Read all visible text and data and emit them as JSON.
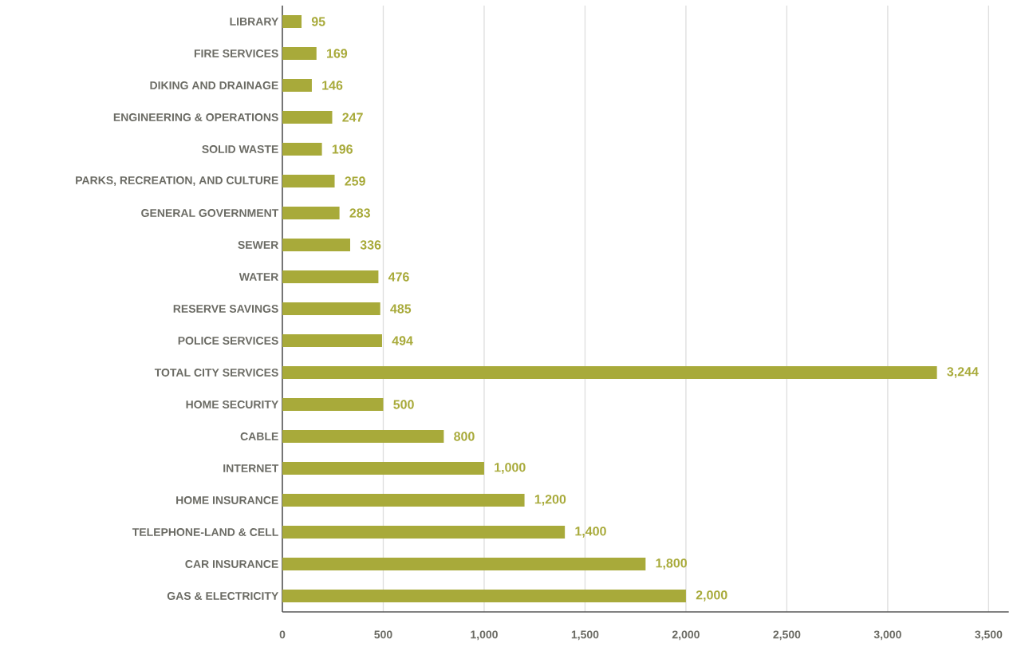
{
  "chart_data": {
    "type": "bar",
    "orientation": "horizontal",
    "categories": [
      "LIBRARY",
      "FIRE SERVICES",
      "DIKING AND DRAINAGE",
      "ENGINEERING & OPERATIONS",
      "SOLID WASTE",
      "PARKS, RECREATION, AND CULTURE",
      "GENERAL GOVERNMENT",
      "SEWER",
      "WATER",
      "RESERVE SAVINGS",
      "POLICE SERVICES",
      "TOTAL CITY SERVICES",
      "HOME SECURITY",
      "CABLE",
      "INTERNET",
      "HOME INSURANCE",
      "TELEPHONE-LAND & CELL",
      "CAR INSURANCE",
      "GAS & ELECTRICITY"
    ],
    "values": [
      95,
      169,
      146,
      247,
      196,
      259,
      283,
      336,
      476,
      485,
      494,
      3244,
      500,
      800,
      1000,
      1200,
      1400,
      1800,
      2000
    ],
    "value_labels": [
      "95",
      "169",
      "146",
      "247",
      "196",
      "259",
      "283",
      "336",
      "476",
      "485",
      "494",
      "3,244",
      "500",
      "800",
      "1,000",
      "1,200",
      "1,400",
      "1,800",
      "2,000"
    ],
    "color": "#a8aa3a",
    "xlim": [
      0,
      3600
    ],
    "xticks": [
      0,
      500,
      {
        "value": 1000,
        "label": "1,000"
      },
      {
        "value": 1500,
        "label": "1,500"
      },
      {
        "value": 2000,
        "label": "2,000"
      },
      {
        "value": 2500,
        "label": "2,500"
      },
      {
        "value": 3000,
        "label": "3,000"
      },
      {
        "value": 3500,
        "label": "3,500"
      }
    ],
    "grid": "x"
  }
}
